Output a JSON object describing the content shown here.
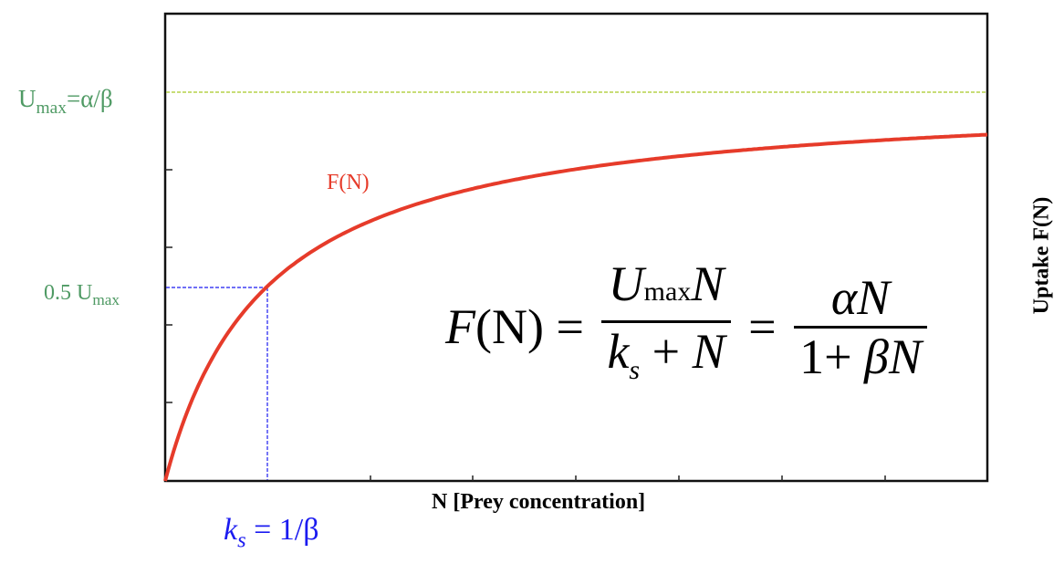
{
  "chart_data": {
    "type": "line",
    "title": "",
    "xlabel": "N [Prey concentration]",
    "ylabel": "Uptake F(N)",
    "function": "F(N) = U_max N / (k_s + N) = alpha N / (1 + beta N)",
    "params": {
      "Umax": 1.0,
      "ks": 1.0
    },
    "x": [
      0,
      0.5,
      1,
      2,
      3,
      4,
      5,
      6,
      7,
      8
    ],
    "series": [
      {
        "name": "F(N)",
        "color": "#e63b2a",
        "values": [
          0,
          0.333,
          0.5,
          0.667,
          0.75,
          0.8,
          0.833,
          0.857,
          0.875,
          0.889
        ]
      }
    ],
    "reference_lines": [
      {
        "name": "Umax",
        "orientation": "horizontal",
        "y": 1.0,
        "style": "dashed",
        "color": "#b5d24a"
      },
      {
        "name": "0.5 Umax",
        "orientation": "horizontal",
        "y": 0.5,
        "x_to": 1.0,
        "style": "dashed",
        "color": "#1b1bf0"
      },
      {
        "name": "ks",
        "orientation": "vertical",
        "x": 1.0,
        "y_to": 0.5,
        "style": "dashed",
        "color": "#1b1bf0"
      }
    ],
    "xlim": [
      0,
      8.04
    ],
    "ylim": [
      0,
      1.2
    ],
    "x_ticks_count": 8,
    "y_ticks_count": 5,
    "grid": false,
    "legend": null
  },
  "labels": {
    "umax_main": "U",
    "umax_sub": "max",
    "umax_rest": "=α/β",
    "half_main": "0.5 U",
    "half_sub": "max",
    "curve": "F(N)",
    "ks_k": "k",
    "ks_sub": "s",
    "ks_rest": " = 1/β",
    "xlabel": "N [Prey concentration]",
    "ylabel": "Uptake F(N)"
  },
  "formula": {
    "lhs_f": "F",
    "lhs_arg": "(N)",
    "eq1": " = ",
    "frac1_num_u": "U",
    "frac1_num_sub": "max",
    "frac1_num_n": "N",
    "frac1_den_k": "k",
    "frac1_den_sub": "s",
    "frac1_den_rest": " + ",
    "frac1_den_n": "N",
    "eq2": " = ",
    "frac2_num_alpha": "α",
    "frac2_num_n": "N",
    "frac2_den_one": "1+ ",
    "frac2_den_beta": "β",
    "frac2_den_n": "N"
  },
  "colors": {
    "curve": "#e63b2a",
    "umax_line": "#b5d24a",
    "half_lines": "#1b1bf0",
    "green_labels": "#4f9a64",
    "axis": "#111111"
  }
}
